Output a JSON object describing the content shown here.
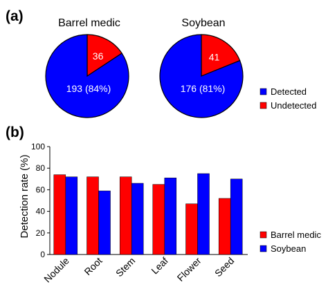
{
  "panel_labels": {
    "a": "(a)",
    "b": "(b)"
  },
  "colors": {
    "barrel_medic": "#ff0000",
    "soybean": "#0000ff",
    "stroke": "#000000"
  },
  "chart_data": [
    {
      "type": "pie",
      "title": "Barrel medic",
      "slices": [
        {
          "name": "Undetected",
          "value": 36,
          "label": "36",
          "color": "#ff0000"
        },
        {
          "name": "Detected",
          "value": 193,
          "label": "193 (84%)",
          "color": "#0000ff"
        }
      ]
    },
    {
      "type": "pie",
      "title": "Soybean",
      "slices": [
        {
          "name": "Undetected",
          "value": 41,
          "label": "41",
          "color": "#ff0000"
        },
        {
          "name": "Detected",
          "value": 176,
          "label": "176 (81%)",
          "color": "#0000ff"
        }
      ]
    },
    {
      "type": "bar",
      "ylabel": "Detection rate (%)",
      "ylim": [
        0,
        100
      ],
      "yticks": [
        0,
        20,
        40,
        60,
        80,
        100
      ],
      "categories": [
        "Nodule",
        "Root",
        "Stem",
        "Leaf",
        "Flower",
        "Seed"
      ],
      "series": [
        {
          "name": "Barrel medic",
          "color": "#ff0000",
          "values": [
            74,
            72,
            72,
            65,
            47,
            52
          ]
        },
        {
          "name": "Soybean",
          "color": "#0000ff",
          "values": [
            72,
            59,
            66,
            71,
            75,
            70
          ]
        }
      ]
    }
  ],
  "pie_legend": [
    {
      "label": "Detected",
      "color": "#0000ff"
    },
    {
      "label": "Undetected",
      "color": "#ff0000"
    }
  ],
  "bar_legend": [
    {
      "label": "Barrel medic",
      "color": "#ff0000"
    },
    {
      "label": "Soybean",
      "color": "#0000ff"
    }
  ]
}
